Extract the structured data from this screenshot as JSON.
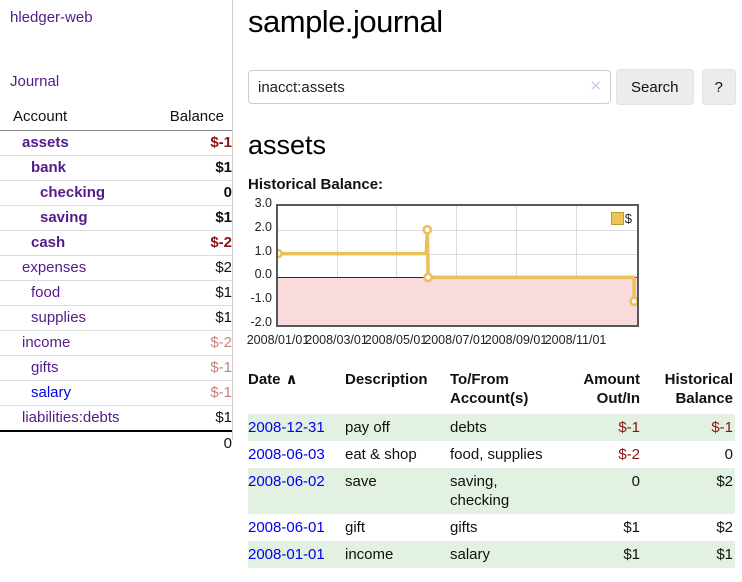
{
  "app": {
    "brand": "hledger-web",
    "nav_journal": "Journal",
    "title": "sample.journal"
  },
  "search": {
    "query": "inacct:assets",
    "clear_icon": "✕",
    "search_label": "Search",
    "help_label": "?"
  },
  "sidebar": {
    "header": {
      "account": "Account",
      "balance": "Balance"
    },
    "rows": [
      {
        "name": "assets",
        "balance": "$-1",
        "level": 1,
        "bold": true,
        "neg": true,
        "link": "purple"
      },
      {
        "name": "bank",
        "balance": "$1",
        "level": 2,
        "bold": true,
        "neg": false,
        "link": "purple"
      },
      {
        "name": "checking",
        "balance": "0",
        "level": 3,
        "bold": true,
        "neg": false,
        "link": "purple"
      },
      {
        "name": "saving",
        "balance": "$1",
        "level": 3,
        "bold": true,
        "neg": false,
        "link": "purple"
      },
      {
        "name": "cash",
        "balance": "$-2",
        "level": 2,
        "bold": true,
        "neg": true,
        "link": "purple"
      },
      {
        "name": "expenses",
        "balance": "$2",
        "level": 1,
        "bold": false,
        "neg": false,
        "link": "purple"
      },
      {
        "name": "food",
        "balance": "$1",
        "level": 2,
        "bold": false,
        "neg": false,
        "link": "purple"
      },
      {
        "name": "supplies",
        "balance": "$1",
        "level": 2,
        "bold": false,
        "neg": false,
        "link": "purple"
      },
      {
        "name": "income",
        "balance": "$-2",
        "level": 1,
        "bold": false,
        "neg": true,
        "link": "purple"
      },
      {
        "name": "gifts",
        "balance": "$-1",
        "level": 2,
        "bold": false,
        "neg": true,
        "link": "purple"
      },
      {
        "name": "salary",
        "balance": "$-1",
        "level": 2,
        "bold": false,
        "neg": true,
        "link": "blue"
      },
      {
        "name": "liabilities:debts",
        "balance": "$1",
        "level": 1,
        "bold": false,
        "neg": false,
        "link": "purple"
      }
    ],
    "total": "0"
  },
  "main": {
    "account_heading": "assets",
    "chart_title": "Historical Balance:"
  },
  "chart_data": {
    "type": "line",
    "title": "Historical Balance:",
    "x_start": "2008-01-01",
    "x_end": "2009-01-03",
    "ylim": [
      -2,
      3
    ],
    "y_ticks": [
      "3.0",
      "2.0",
      "1.0",
      "0.0",
      "-1.0",
      "-2.0"
    ],
    "y_tick_values": [
      3,
      2,
      1,
      0,
      -1,
      -2
    ],
    "x_ticks": [
      "2008/01/01",
      "2008/03/01",
      "2008/05/01",
      "2008/07/01",
      "2008/09/01",
      "2008/11/01"
    ],
    "x_tick_dates": [
      "2008-01-01",
      "2008-03-01",
      "2008-05-01",
      "2008-07-01",
      "2008-09-01",
      "2008-11-01"
    ],
    "grid": true,
    "negative_region_shaded": true,
    "legend": {
      "label": "$",
      "position": "top-right"
    },
    "series": [
      {
        "name": "$",
        "step": true,
        "points": [
          [
            "2008-01-01",
            1
          ],
          [
            "2008-06-01",
            1
          ],
          [
            "2008-06-02",
            2
          ],
          [
            "2008-06-03",
            0
          ],
          [
            "2008-12-31",
            0
          ],
          [
            "2008-12-31",
            -1
          ]
        ],
        "markers": [
          [
            "2008-01-01",
            1
          ],
          [
            "2008-06-02",
            2
          ],
          [
            "2008-06-03",
            0
          ],
          [
            "2008-12-31",
            -1
          ]
        ]
      }
    ]
  },
  "register": {
    "sort_indicator": "∧",
    "headers": [
      {
        "lines": [
          "Date"
        ],
        "sort": true,
        "align": "left"
      },
      {
        "lines": [
          "Description"
        ],
        "align": "left"
      },
      {
        "lines": [
          "To/From",
          "Account(s)"
        ],
        "align": "left"
      },
      {
        "lines": [
          "Amount",
          "Out/In"
        ],
        "align": "right"
      },
      {
        "lines": [
          "Historical",
          "Balance"
        ],
        "align": "right"
      }
    ],
    "rows": [
      {
        "date": "2008-12-31",
        "description": "pay off",
        "accounts": "debts",
        "amount": "$-1",
        "balance": "$-1",
        "amount_neg": true,
        "balance_neg": true
      },
      {
        "date": "2008-06-03",
        "description": "eat & shop",
        "accounts": "food, supplies",
        "amount": "$-2",
        "balance": "0",
        "amount_neg": true,
        "balance_neg": false
      },
      {
        "date": "2008-06-02",
        "description": "save",
        "accounts": "saving, checking",
        "amount": "0",
        "balance": "$2",
        "amount_neg": false,
        "balance_neg": false
      },
      {
        "date": "2008-06-01",
        "description": "gift",
        "accounts": "gifts",
        "amount": "$1",
        "balance": "$2",
        "amount_neg": false,
        "balance_neg": false
      },
      {
        "date": "2008-01-01",
        "description": "income",
        "accounts": "salary",
        "amount": "$1",
        "balance": "$1",
        "amount_neg": false,
        "balance_neg": false
      }
    ]
  },
  "colors": {
    "purple": "#551a8b",
    "blue": "#0000ee",
    "neg": "#8b1212",
    "negm": "#c5827e",
    "stripe": "#e2f1e1",
    "gold": "#e9c158",
    "pink": "#fadbdb",
    "zero": "#8b0000",
    "legendfill": "#eac54f",
    "legendborder": "#bd9d2f",
    "clear": "#d9c9e6"
  }
}
